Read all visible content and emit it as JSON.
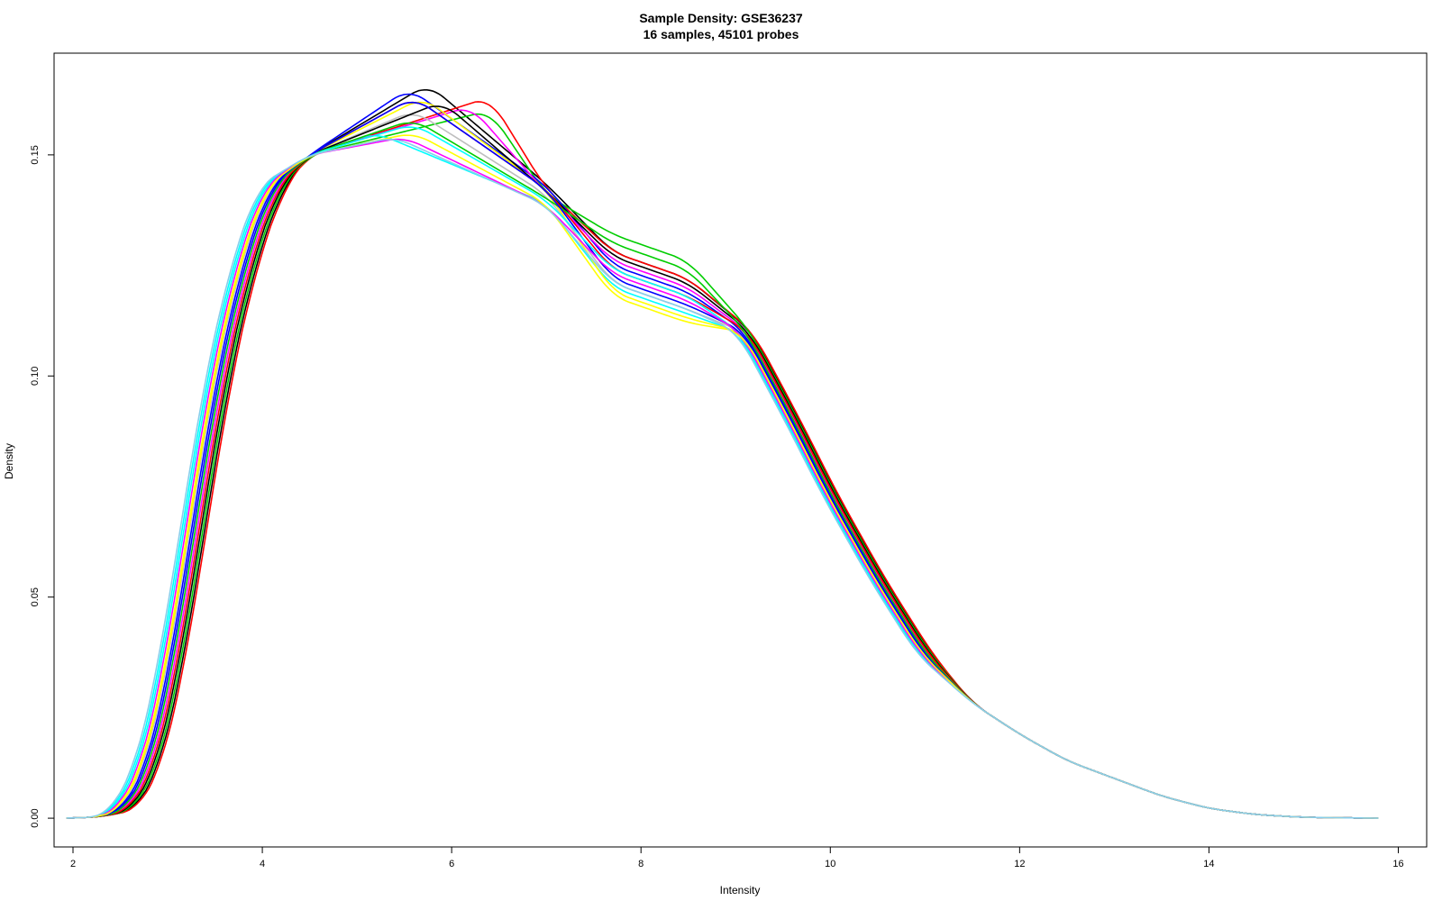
{
  "chart_data": {
    "type": "line",
    "title": "Sample Density: GSE36237",
    "subtitle": "16 samples, 45101 probes",
    "xlabel": "Intensity",
    "ylabel": "Density",
    "xlim": [
      1.8,
      16.3
    ],
    "ylim": [
      -0.0065,
      0.173
    ],
    "x_ticks": [
      2,
      4,
      6,
      8,
      10,
      12,
      14,
      16
    ],
    "y_ticks": [
      0.0,
      0.05,
      0.1,
      0.15
    ],
    "x_tick_labels": [
      "2",
      "4",
      "6",
      "8",
      "10",
      "12",
      "14",
      "16"
    ],
    "y_tick_labels": [
      "0.00",
      "0.05",
      "0.10",
      "0.15"
    ],
    "grid": false,
    "legend": "none",
    "series": [
      {
        "color": "#000000",
        "peak_x": 5.75,
        "peak_y": 0.166,
        "shoulder_y": 0.128,
        "shift": 0.12
      },
      {
        "color": "#FF0000",
        "peak_x": 6.4,
        "peak_y": 0.163,
        "shoulder_y": 0.128,
        "shift": 0.14
      },
      {
        "color": "#00CD00",
        "peak_x": 6.4,
        "peak_y": 0.16,
        "shoulder_y": 0.132,
        "shift": 0.1
      },
      {
        "color": "#0000FF",
        "peak_x": 5.55,
        "peak_y": 0.165,
        "shoulder_y": 0.125,
        "shift": 0.0
      },
      {
        "color": "#00FFFF",
        "peak_x": 5.2,
        "peak_y": 0.155,
        "shoulder_y": 0.12,
        "shift": -0.12
      },
      {
        "color": "#FF00FF",
        "peak_x": 6.2,
        "peak_y": 0.161,
        "shoulder_y": 0.126,
        "shift": 0.04
      },
      {
        "color": "#FFFF00",
        "peak_x": 5.7,
        "peak_y": 0.163,
        "shoulder_y": 0.119,
        "shift": -0.06
      },
      {
        "color": "#BEBEBE",
        "peak_x": 5.6,
        "peak_y": 0.16,
        "shoulder_y": 0.121,
        "shift": -0.04
      },
      {
        "color": "#000000",
        "peak_x": 5.9,
        "peak_y": 0.162,
        "shoulder_y": 0.127,
        "shift": 0.08
      },
      {
        "color": "#FF0000",
        "peak_x": 5.6,
        "peak_y": 0.163,
        "shoulder_y": 0.124,
        "shift": 0.06
      },
      {
        "color": "#00CD00",
        "peak_x": 5.6,
        "peak_y": 0.158,
        "shoulder_y": 0.13,
        "shift": 0.02
      },
      {
        "color": "#0000FF",
        "peak_x": 5.6,
        "peak_y": 0.163,
        "shoulder_y": 0.122,
        "shift": -0.02
      },
      {
        "color": "#00FFFF",
        "peak_x": 5.6,
        "peak_y": 0.157,
        "shoulder_y": 0.124,
        "shift": -0.1
      },
      {
        "color": "#FF00FF",
        "peak_x": 5.5,
        "peak_y": 0.154,
        "shoulder_y": 0.123,
        "shift": -0.08
      },
      {
        "color": "#FFFF00",
        "peak_x": 5.6,
        "peak_y": 0.155,
        "shoulder_y": 0.118,
        "shift": -0.05
      },
      {
        "color": "#87CEEB",
        "peak_x": 5.4,
        "peak_y": 0.154,
        "shoulder_y": 0.121,
        "shift": -0.14
      }
    ]
  }
}
